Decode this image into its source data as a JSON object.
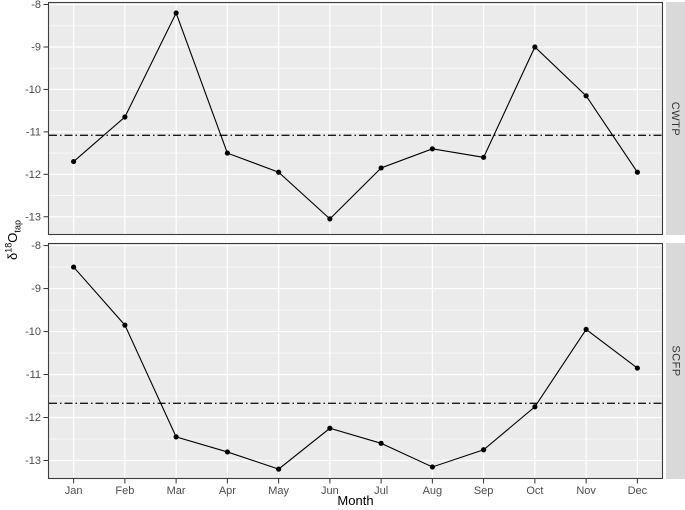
{
  "figure": {
    "y_axis_title": {
      "delta": "δ",
      "sup": "18",
      "main": "O",
      "sub": "tap"
    }
  },
  "chart_data": {
    "type": "line",
    "title": "",
    "xlabel": "Month",
    "ylabel": "δ18O tap",
    "categories": [
      "Jan",
      "Feb",
      "Mar",
      "Apr",
      "May",
      "Jun",
      "Jul",
      "Aug",
      "Sep",
      "Oct",
      "Nov",
      "Dec"
    ],
    "ylim": [
      -13.43,
      -7.94
    ],
    "yticks": [
      -8,
      -9,
      -10,
      -11,
      -12,
      -13
    ],
    "yticks_minor": [
      -8.5,
      -9.5,
      -10.5,
      -11.5,
      -12.5
    ],
    "grid": "major and minor horizontal, major vertical at each month",
    "legend": "none",
    "facets": [
      {
        "label": "CWTP",
        "values": [
          -11.7,
          -10.65,
          -8.2,
          -11.5,
          -11.95,
          -13.05,
          -11.85,
          -11.4,
          -11.6,
          -9.0,
          -10.15,
          -11.95
        ],
        "mean_line": -11.08
      },
      {
        "label": "SCFP",
        "values": [
          -8.5,
          -9.85,
          -12.45,
          -12.8,
          -13.2,
          -12.25,
          -12.6,
          -13.15,
          -12.75,
          -11.75,
          -9.95,
          -10.85
        ],
        "mean_line": -11.67
      }
    ]
  },
  "style": {
    "panel_bg": "#ebebeb",
    "grid_color": "#ffffff",
    "panel_border": "#3c3c3c",
    "strip_bg": "#d9d9d9",
    "strip_text": "#333333",
    "axis_text": "#4d4d4d",
    "tick_color": "#333333",
    "series_color": "#000000",
    "ref_line_color": "#1a1a1a"
  }
}
